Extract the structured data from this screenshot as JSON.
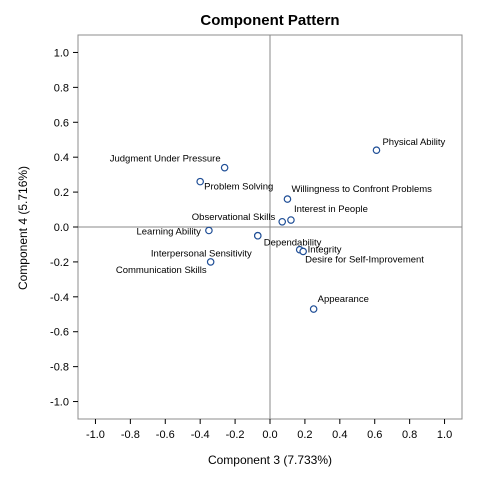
{
  "chart_data": {
    "type": "scatter",
    "title": "Component Pattern",
    "xlabel": "Component 3 (7.733%)",
    "ylabel": "Component 4 (5.716%)",
    "xlim": [
      -1.1,
      1.1
    ],
    "ylim": [
      -1.1,
      1.1
    ],
    "xticks": [
      "-1.0",
      "-0.8",
      "-0.6",
      "-0.4",
      "-0.2",
      "0.0",
      "0.2",
      "0.4",
      "0.6",
      "0.8",
      "1.0"
    ],
    "yticks": [
      "1.0",
      "0.8",
      "0.6",
      "0.4",
      "0.2",
      "0.0",
      "-0.2",
      "-0.4",
      "-0.6",
      "-0.8",
      "-1.0"
    ],
    "grid": false,
    "reference_lines": {
      "x": 0,
      "y": 0
    },
    "points": [
      {
        "label": "Physical Ability",
        "x": 0.61,
        "y": 0.44
      },
      {
        "label": "Judgment Under Pressure",
        "x": -0.26,
        "y": 0.34
      },
      {
        "label": "Problem Solving",
        "x": -0.4,
        "y": 0.26
      },
      {
        "label": "Willingness to Confront Problems",
        "x": 0.1,
        "y": 0.16
      },
      {
        "label": "Interest in People",
        "x": 0.12,
        "y": 0.04
      },
      {
        "label": "Observational Skills",
        "x": 0.07,
        "y": 0.03
      },
      {
        "label": "Learning Ability",
        "x": -0.35,
        "y": -0.02
      },
      {
        "label": "Dependability",
        "x": -0.07,
        "y": -0.05
      },
      {
        "label": "Interpersonal Sensitivity",
        "x": -0.07,
        "y": -0.05
      },
      {
        "label": "Integrity",
        "x": 0.17,
        "y": -0.13
      },
      {
        "label": "Communication Skills",
        "x": -0.34,
        "y": -0.2
      },
      {
        "label": "Desire for Self-Improvement",
        "x": 0.19,
        "y": -0.14
      },
      {
        "label": "Appearance",
        "x": 0.25,
        "y": -0.47
      }
    ],
    "marker_color": "#1f4e96",
    "reference_line_color": "#888888"
  }
}
